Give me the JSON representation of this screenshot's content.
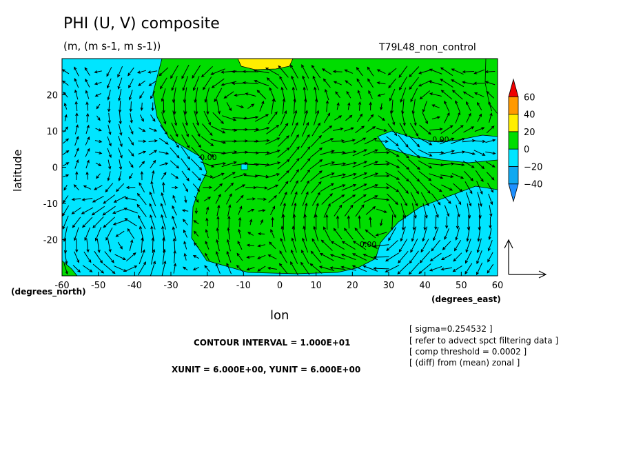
{
  "chart_data": {
    "type": "heatmap",
    "title": "PHI (U, V) composite",
    "subtitle": "(m, (m s-1, m s-1))",
    "run_label": "T79L48_non_control",
    "xlabel": "lon",
    "ylabel": "latitude",
    "x_unit_note_right": "(degrees_east)",
    "x_unit_note_left": "(degrees_north)",
    "xlim": [
      -60,
      60
    ],
    "ylim": [
      -30,
      30
    ],
    "x_ticks": [
      -60,
      -50,
      -40,
      -30,
      -20,
      -10,
      0,
      10,
      20,
      30,
      40,
      50,
      60
    ],
    "y_ticks": [
      -20,
      -10,
      0,
      10,
      20
    ],
    "contour_interval": "CONTOUR INTERVAL = 1.000E+01",
    "vector_units": "XUNIT = 6.000E+00, YUNIT = 6.000E+00",
    "colorbar": {
      "labels": [
        "60",
        "40",
        "20",
        "0",
        "−20",
        "−40"
      ],
      "bins": [
        {
          "range": [
            -60,
            -40
          ],
          "color": "#1e90ff"
        },
        {
          "range": [
            -40,
            -20
          ],
          "color": "#0fa8f0"
        },
        {
          "range": [
            -20,
            0
          ],
          "color": "#00e5ff"
        },
        {
          "range": [
            0,
            20
          ],
          "color": "#00dd00"
        },
        {
          "range": [
            20,
            40
          ],
          "color": "#ffee00"
        },
        {
          "range": [
            40,
            60
          ],
          "color": "#ff9900"
        },
        {
          "range": [
            60,
            80
          ],
          "color": "#ee0000"
        }
      ]
    },
    "contour_labels": [
      {
        "text": "0.00",
        "lon": -22,
        "lat": 2
      },
      {
        "text": "0.00",
        "lon": 42,
        "lat": 7
      },
      {
        "text": "0.00",
        "lon": 22,
        "lat": -22
      }
    ],
    "regions": {
      "negative_cyan": "west of ~-25 lon and east of ~30 lon south of ~-5 lat",
      "positive_green": "central band from -35 to 60 lon, tilted northwest",
      "positive_yellow": "small patch near -10 lon, 28 lat"
    },
    "notes": [
      "[ sigma=0.254532 ]",
      "[ refer to advect spct filtering data ]",
      "[ comp threshold = 0.0002 ]",
      "[ (diff) from (mean) zonal ]"
    ]
  }
}
